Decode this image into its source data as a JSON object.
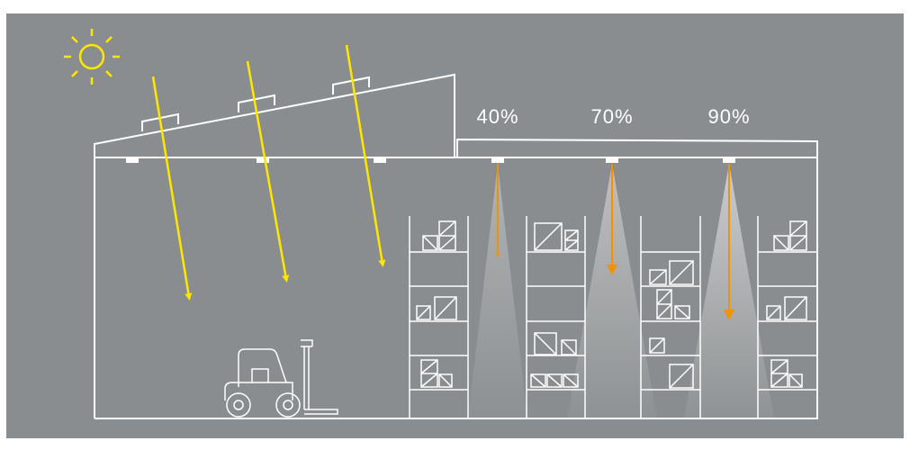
{
  "lamps": [
    {
      "label": "40%"
    },
    {
      "label": "70%"
    },
    {
      "label": "90%"
    }
  ]
}
